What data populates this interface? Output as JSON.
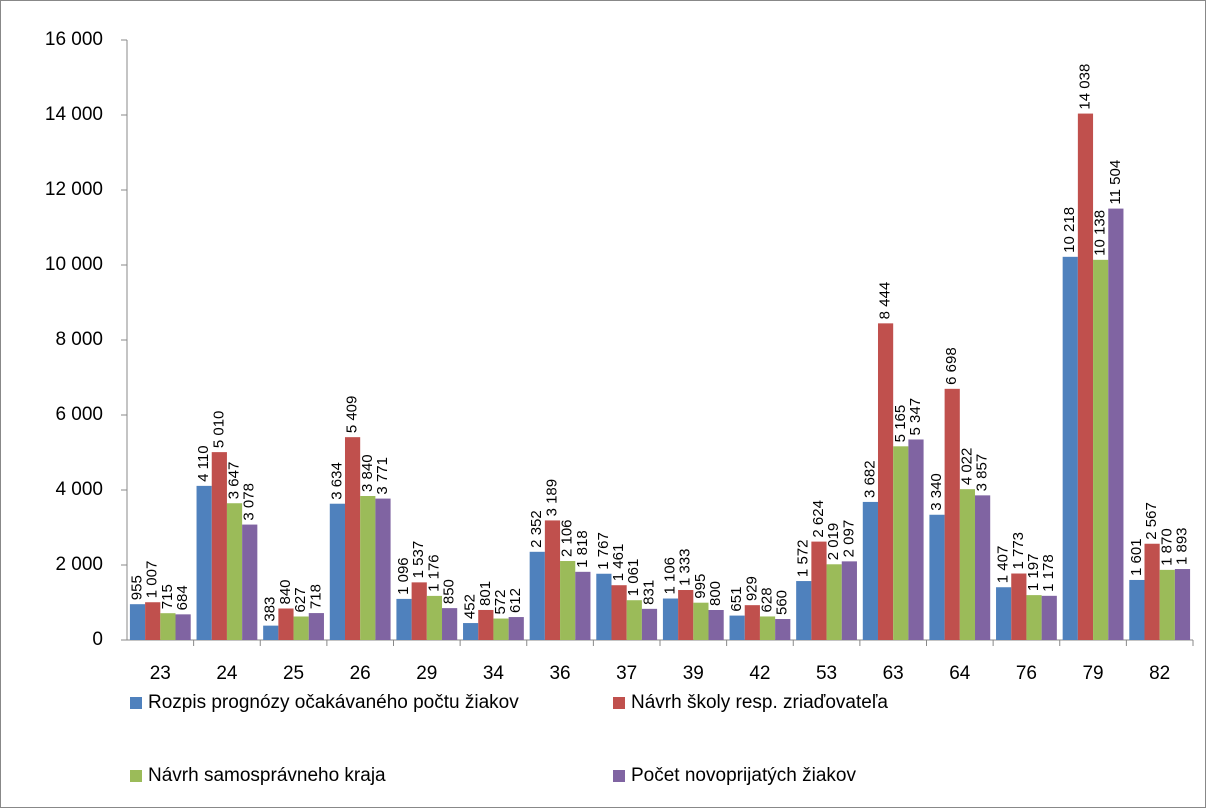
{
  "chart_data": {
    "type": "bar",
    "categories": [
      "23",
      "24",
      "25",
      "26",
      "29",
      "34",
      "36",
      "37",
      "39",
      "42",
      "53",
      "63",
      "64",
      "76",
      "79",
      "82"
    ],
    "series": [
      {
        "name": "Rozpis prognózy očakávaného počtu žiakov",
        "color": "#4f81bd",
        "values": [
          955,
          4110,
          383,
          3634,
          1096,
          452,
          2352,
          1767,
          1106,
          651,
          1572,
          3682,
          3340,
          1407,
          10218,
          1601
        ],
        "value_labels": [
          "955",
          "4 110",
          "383",
          "3 634",
          "1 096",
          "452",
          "2 352",
          "1 767",
          "1 106",
          "651",
          "1 572",
          "3 682",
          "3 340",
          "1 407",
          "10 218",
          "1 601"
        ]
      },
      {
        "name": "Návrh školy resp. zriaďovateľa",
        "color": "#c0504d",
        "values": [
          1007,
          5010,
          840,
          5409,
          1537,
          801,
          3189,
          1461,
          1333,
          929,
          2624,
          8444,
          6698,
          1773,
          14038,
          2567
        ],
        "value_labels": [
          "1 007",
          "5 010",
          "840",
          "5 409",
          "1 537",
          "801",
          "3 189",
          "1 461",
          "1 333",
          "929",
          "2 624",
          "8 444",
          "6 698",
          "1 773",
          "14 038",
          "2 567"
        ]
      },
      {
        "name": "Návrh samosprávneho kraja",
        "color": "#9bbb59",
        "values": [
          715,
          3647,
          627,
          3840,
          1176,
          572,
          2106,
          1061,
          995,
          628,
          2019,
          5165,
          4022,
          1197,
          10138,
          1870
        ],
        "value_labels": [
          "715",
          "3 647",
          "627",
          "3 840",
          "1 176",
          "572",
          "2 106",
          "1 061",
          "995",
          "628",
          "2 019",
          "5 165",
          "4 022",
          "1 197",
          "10 138",
          "1 870"
        ]
      },
      {
        "name": "Počet novoprijatých žiakov",
        "color": "#8064a2",
        "values": [
          684,
          3078,
          718,
          3771,
          850,
          612,
          1818,
          831,
          800,
          560,
          2097,
          5347,
          3857,
          1178,
          11504,
          1893
        ],
        "value_labels": [
          "684",
          "3 078",
          "718",
          "3 771",
          "850",
          "612",
          "1 818",
          "831",
          "800",
          "560",
          "2 097",
          "5 347",
          "3 857",
          "1 178",
          "11 504",
          "1 893"
        ]
      }
    ],
    "ylim": [
      0,
      16000
    ],
    "yticks": [
      0,
      {
        "value": 2000,
        "label": "2 000"
      },
      {
        "value": 4000,
        "label": "4 000"
      },
      {
        "value": 6000,
        "label": "6 000"
      },
      {
        "value": 8000,
        "label": "8 000"
      },
      {
        "value": 10000,
        "label": "10 000"
      },
      {
        "value": 12000,
        "label": "12 000"
      },
      {
        "value": 14000,
        "label": "14 000"
      },
      {
        "value": 16000,
        "label": "16 000"
      }
    ],
    "grid": false
  }
}
